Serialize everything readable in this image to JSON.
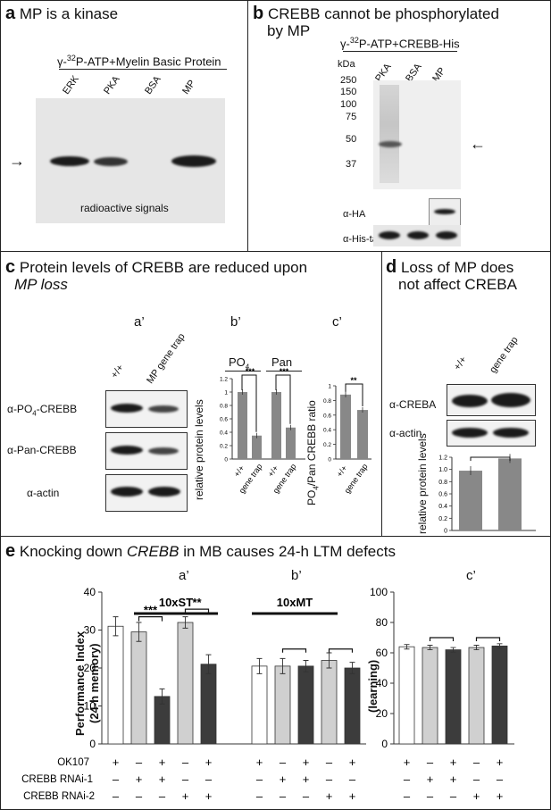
{
  "panel_a": {
    "letter": "a",
    "title": "MP is a kinase",
    "header_prefix": "γ-",
    "header_sup": "32",
    "header_rest": "P-ATP+Myelin Basic Protein",
    "lanes": [
      "ERK",
      "PKA",
      "BSA",
      "MP"
    ],
    "caption": "radioactive signals",
    "arrow": "→"
  },
  "panel_b": {
    "letter": "b",
    "title_line1": "CREBB cannot be phosphorylated",
    "title_line2": "by MP",
    "header_prefix": "γ-",
    "header_sup": "32",
    "header_rest": "P-ATP+CREBB-His",
    "kda_label": "kDa",
    "markers": [
      "250",
      "150",
      "100",
      "75",
      "50",
      "37"
    ],
    "lanes": [
      "PKA",
      "BSA",
      "MP"
    ],
    "arrow": "←",
    "row_ha": "α-HA",
    "row_his": "α-His-tag"
  },
  "panel_c": {
    "letter": "c",
    "title_line1": "Protein levels of CREBB are reduced upon",
    "title_line2": "MP loss",
    "sub_a": "a’",
    "sub_b": "b’",
    "sub_c": "c’",
    "lanes": [
      "+/+",
      "MP gene trap"
    ],
    "rows": [
      "α-PO",
      "α-Pan-CREBB",
      "α-actin"
    ],
    "row1_sub": "4",
    "row1_rest": "-CREBB",
    "ylabel_b": "relative protein levels",
    "ylabel_c_prefix": "PO",
    "ylabel_c_sub": "4",
    "ylabel_c_rest": "/Pan CREBB ratio",
    "group1_prefix": "PO",
    "group1_sub": "4",
    "group2": "Pan",
    "xtick_wt": "+/+",
    "xtick_gt": "gene trap",
    "sig_po4": "***",
    "sig_pan": "***",
    "sig_ratio": "**"
  },
  "panel_d": {
    "letter": "d",
    "title_line1": "Loss of MP does",
    "title_line2": "not affect CREBA",
    "lanes": [
      "+/+",
      "gene trap"
    ],
    "rows": [
      "α-CREBA",
      "α-actin"
    ],
    "ylabel": "relative protein levels"
  },
  "panel_e": {
    "letter": "e",
    "title_prefix": "Knocking down ",
    "title_italic": "CREBB",
    "title_rest": " in MB causes 24-h LTM defects",
    "sub_a": "a’",
    "sub_b": "b’",
    "sub_c": "c’",
    "group_a": "10xST",
    "group_b": "10xMT",
    "ylabel_left_1": "Performance Index",
    "ylabel_left_2": "(24-h memory)",
    "ylabel_right": "(learning)",
    "sig1": "***",
    "sig2": "**",
    "rows": [
      "OK107",
      "CREBB RNAi-1",
      "CREBB RNAi-2"
    ],
    "genotypes": [
      [
        "+",
        "-",
        "-"
      ],
      [
        "-",
        "+",
        "-"
      ],
      [
        "+",
        "+",
        "-"
      ],
      [
        "-",
        "-",
        "+"
      ],
      [
        "+",
        "-",
        "+"
      ]
    ]
  },
  "chart_data": [
    {
      "type": "bar",
      "categories": [
        "+/+",
        "gene trap"
      ],
      "series": [
        {
          "name": "PO4",
          "values": [
            1.0,
            0.35
          ]
        },
        {
          "name": "Pan",
          "values": [
            1.0,
            0.47
          ]
        }
      ],
      "ylabel": "relative protein levels",
      "ylim": [
        0,
        1.2
      ],
      "yticks": [
        "0",
        "0.2",
        "0.4",
        "0.6",
        "0.8",
        "1",
        "1.2"
      ]
    },
    {
      "type": "bar",
      "categories": [
        "+/+",
        "gene trap"
      ],
      "values": [
        0.88,
        0.67
      ],
      "ylabel": "PO4/Pan CREBB ratio",
      "ylim": [
        0,
        1
      ],
      "yticks": [
        "0",
        "0.2",
        "0.4",
        "0.6",
        "0.8",
        "1"
      ]
    },
    {
      "type": "bar",
      "categories": [
        "+/+",
        "gene trap"
      ],
      "values": [
        0.98,
        1.18
      ],
      "ylabel": "relative protein levels",
      "ylim": [
        0,
        1.2
      ],
      "yticks": [
        "0",
        "0.2",
        "0.4",
        "0.6",
        "0.8",
        "1.0",
        "1.2"
      ]
    },
    {
      "type": "bar",
      "title": "10xST",
      "categories": [
        "1",
        "2",
        "3",
        "4",
        "5"
      ],
      "values": [
        31,
        29.5,
        12.5,
        32,
        21
      ],
      "errors": [
        2.5,
        2.5,
        2,
        1.5,
        2.5
      ],
      "ylim": [
        0,
        40
      ],
      "yticks": [
        "0",
        "10",
        "20",
        "30",
        "40"
      ]
    },
    {
      "type": "bar",
      "title": "10xMT",
      "categories": [
        "1",
        "2",
        "3",
        "4",
        "5"
      ],
      "values": [
        20.5,
        20.5,
        20.5,
        22,
        20
      ],
      "errors": [
        2,
        2,
        1.5,
        2,
        1.5
      ],
      "ylim": [
        0,
        40
      ]
    },
    {
      "type": "bar",
      "categories": [
        "1",
        "2",
        "3",
        "4",
        "5"
      ],
      "values": [
        64,
        63.5,
        62,
        63.5,
        64.5
      ],
      "errors": [
        1.5,
        1.5,
        1.5,
        1.5,
        1.5
      ],
      "ylim": [
        0,
        100
      ],
      "yticks": [
        "0",
        "20",
        "40",
        "60",
        "80",
        "100"
      ]
    }
  ]
}
